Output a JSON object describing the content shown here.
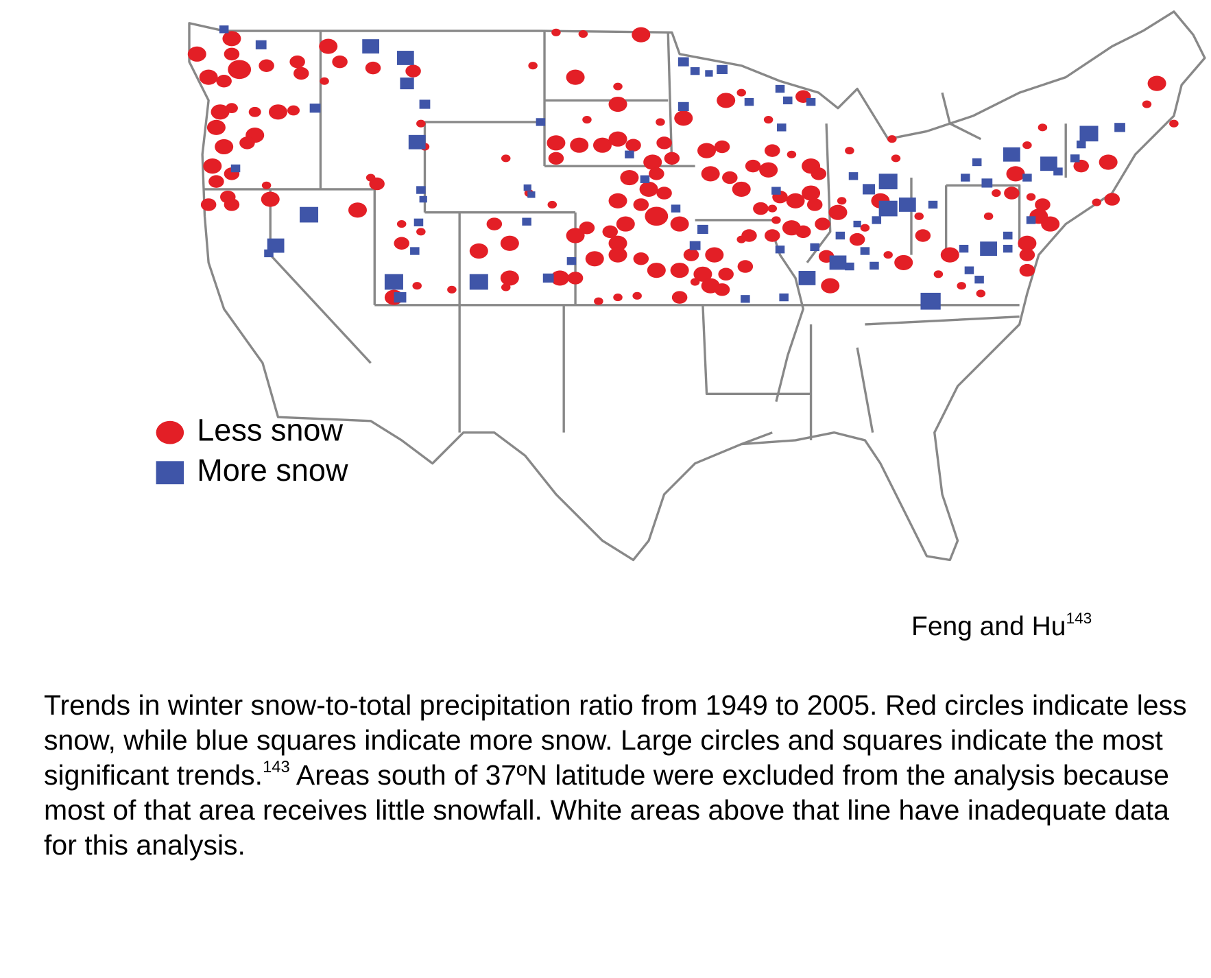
{
  "legend": {
    "items": [
      {
        "label": "Less snow"
      },
      {
        "label": "More snow"
      }
    ]
  },
  "credit": {
    "text": "Feng and Hu",
    "ref": "143"
  },
  "caption": {
    "part1": "Trends in winter snow-to-total precipitation ratio from 1949 to 2005. Red circles indicate less snow, while blue squares indicate more snow. Large circles and squares indicate the most significant trends.",
    "ref": "143",
    "part2": "Areas south of 37ºN latitude were excluded from the analysis because most of that area receives little snowfall. White areas above that line have inadequate data for this analysis."
  }
}
